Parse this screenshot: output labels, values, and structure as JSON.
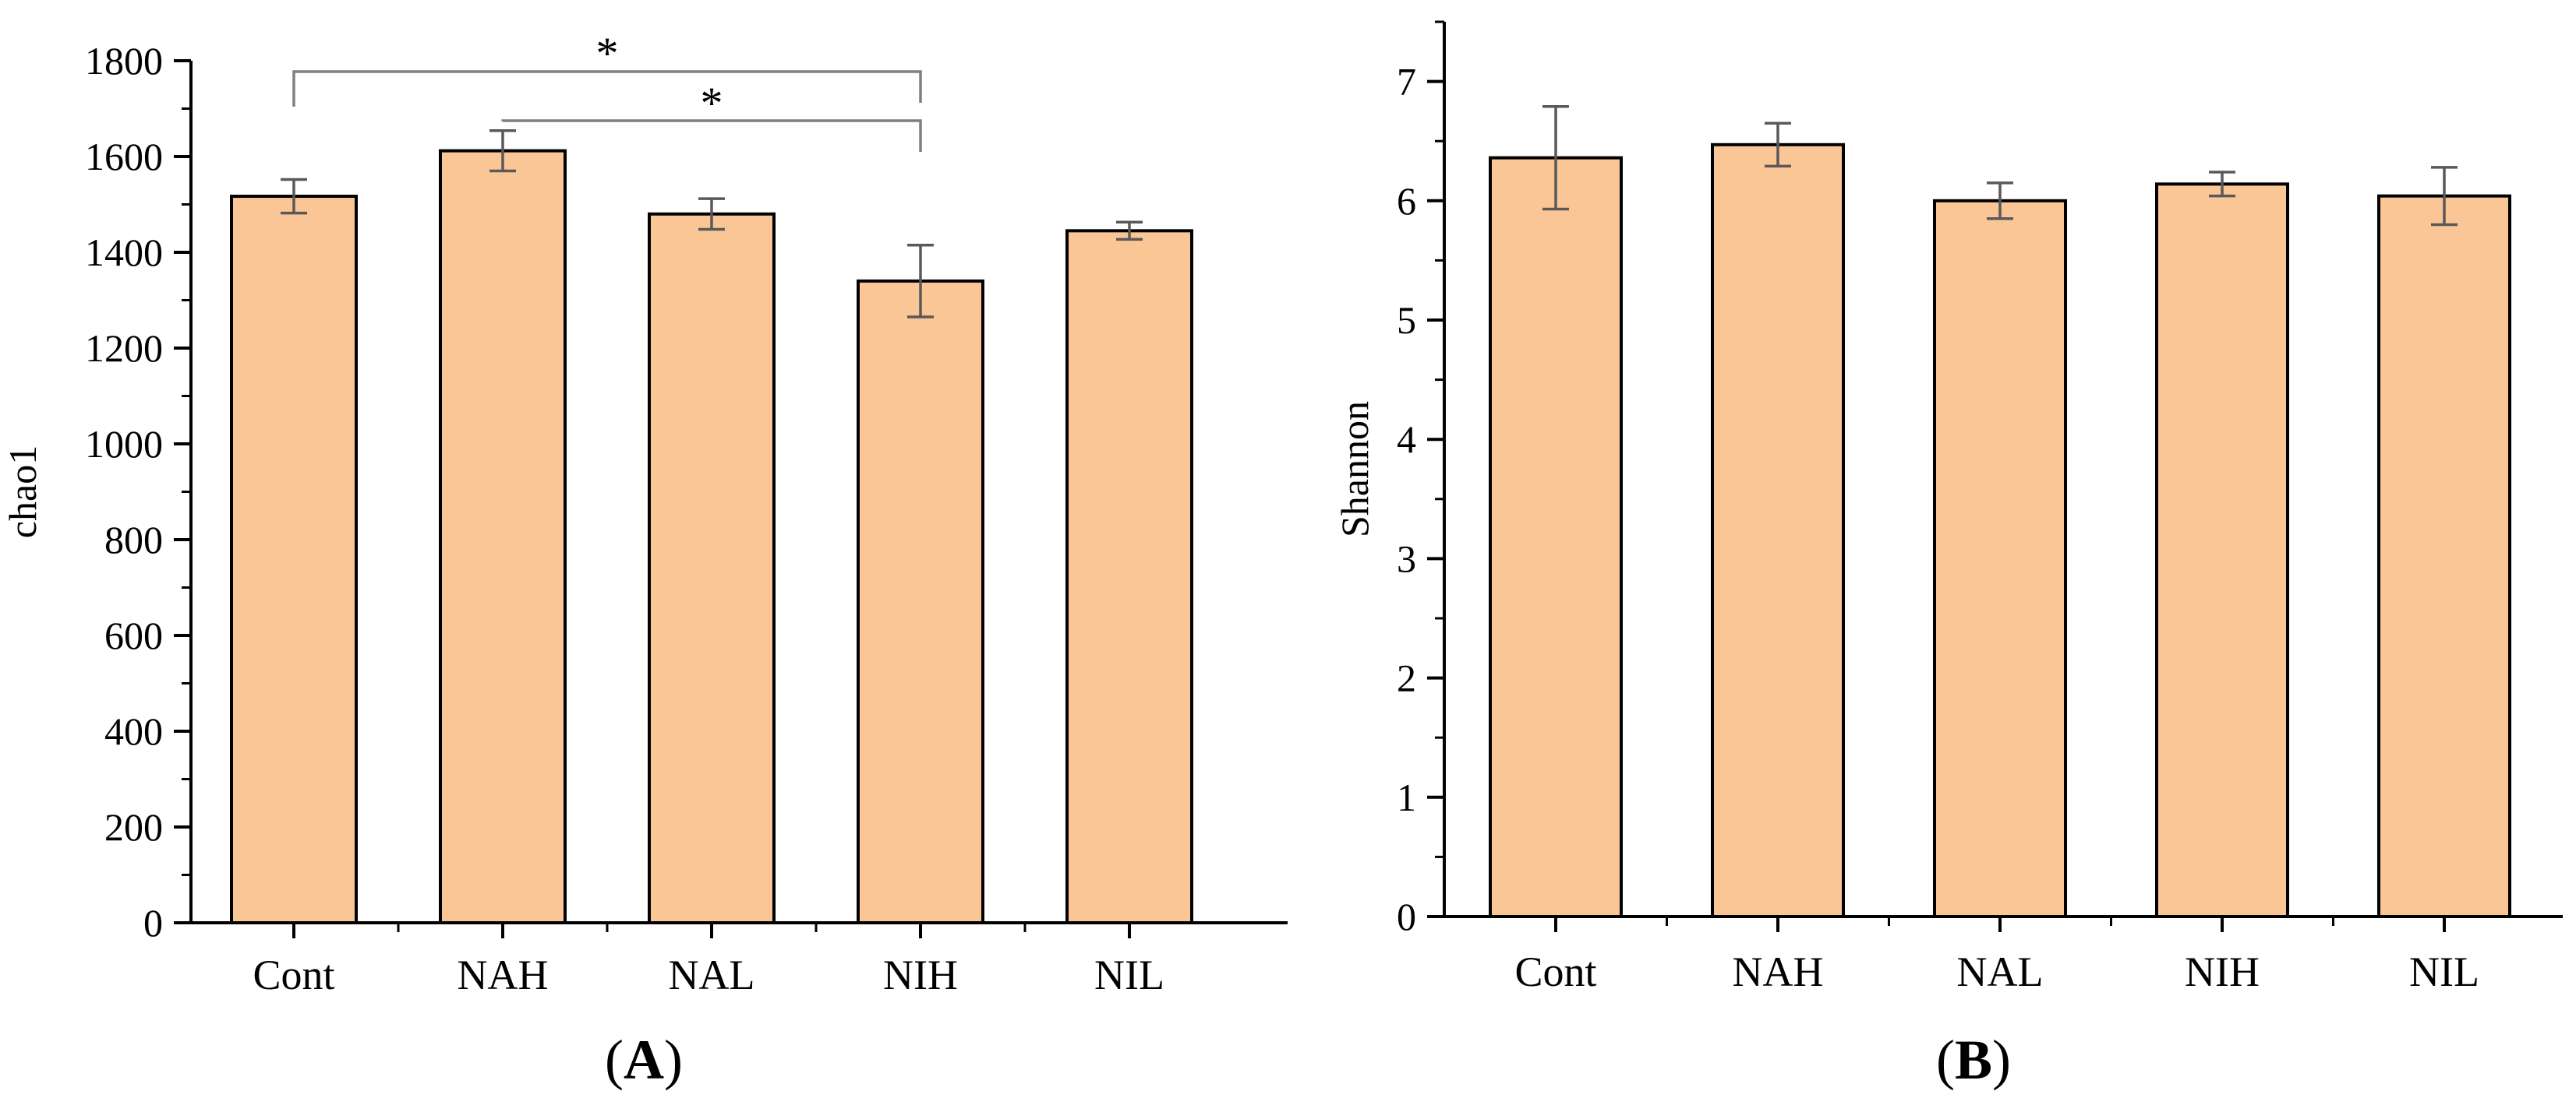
{
  "chart_data": [
    {
      "type": "bar",
      "panel": "A",
      "categories": [
        "Cont",
        "NAH",
        "NAL",
        "NIH",
        "NIL"
      ],
      "values": [
        1517,
        1612,
        1480,
        1340,
        1445
      ],
      "errors": [
        35,
        42,
        32,
        75,
        18
      ],
      "xlabel": "",
      "ylabel": "chao1",
      "ylim": [
        0,
        1800
      ],
      "yticks": [
        0,
        200,
        400,
        600,
        800,
        1000,
        1200,
        1400,
        1600,
        1800
      ],
      "bar_color": "#fac696",
      "significance": [
        {
          "from": "Cont",
          "to": "NIH",
          "label": "*"
        },
        {
          "from": "NAH",
          "to": "NIH",
          "label": "*"
        }
      ]
    },
    {
      "type": "bar",
      "panel": "B",
      "categories": [
        "Cont",
        "NAH",
        "NAL",
        "NIH",
        "NIL"
      ],
      "values": [
        6.36,
        6.47,
        6.0,
        6.14,
        6.04
      ],
      "errors": [
        0.43,
        0.18,
        0.15,
        0.1,
        0.24
      ],
      "xlabel": "",
      "ylabel": "Shannon",
      "ylim": [
        0,
        7.5
      ],
      "yticks": [
        0,
        1,
        2,
        3,
        4,
        5,
        6,
        7
      ],
      "bar_color": "#fac696",
      "significance": []
    }
  ],
  "panel_labels": [
    "A",
    "B"
  ]
}
